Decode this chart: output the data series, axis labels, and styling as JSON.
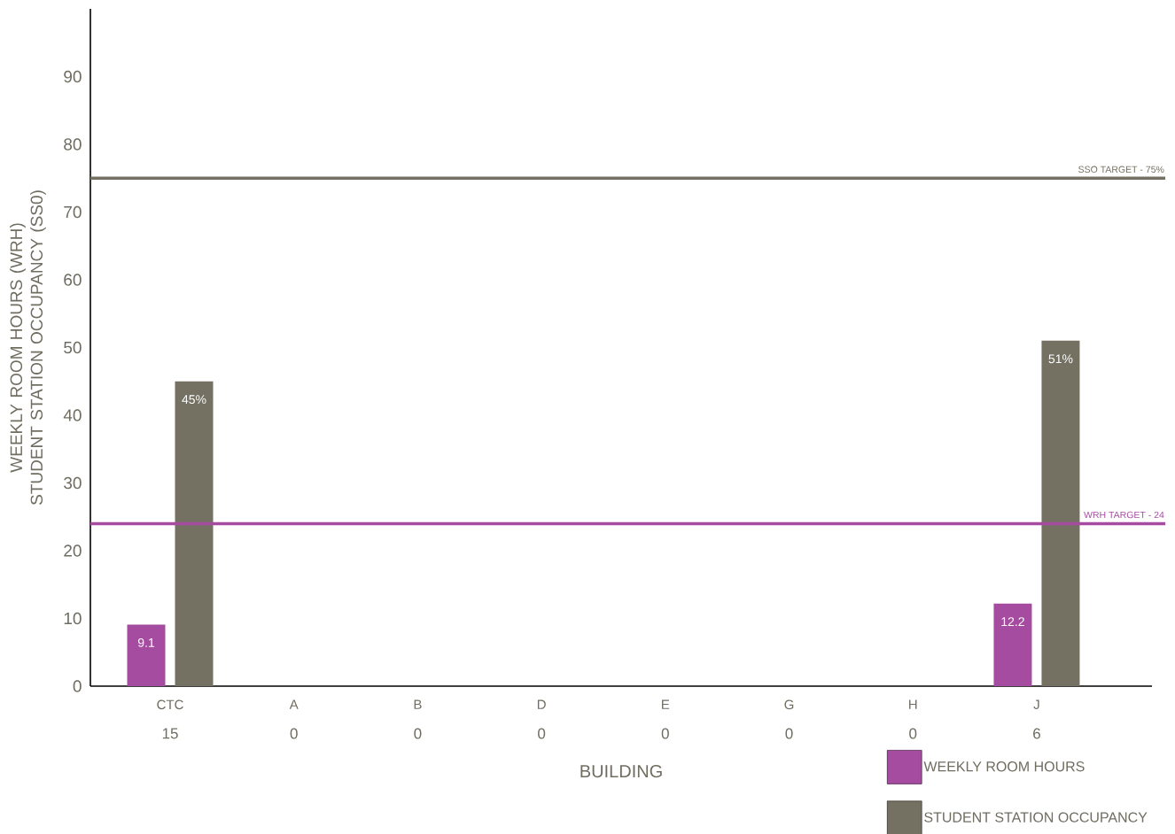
{
  "chart_data": {
    "type": "bar",
    "xlabel": "BUILDING",
    "ylabel": "WEEKLY ROOM HOURS (WRH) STUDENT STATION OCCUPANCY (SS0)",
    "categories": [
      "CTC",
      "A",
      "B",
      "D",
      "E",
      "G",
      "H",
      "J"
    ],
    "series": [
      {
        "name": "WEEKLY ROOM HOURS",
        "color": "#a64ca0",
        "values": [
          9.1,
          null,
          null,
          null,
          null,
          null,
          null,
          12.2
        ],
        "value_labels": [
          "9.1",
          null,
          null,
          null,
          null,
          null,
          null,
          "12.2"
        ]
      },
      {
        "name": "STUDENT STATION OCCUPANCY",
        "color": "#747162",
        "values": [
          45,
          null,
          null,
          null,
          null,
          null,
          null,
          51
        ],
        "value_labels": [
          "45%",
          null,
          null,
          null,
          null,
          null,
          null,
          "51%"
        ]
      }
    ],
    "ylim": [
      0,
      100
    ],
    "yticks": [
      0,
      10,
      20,
      30,
      40,
      50,
      60,
      70,
      80,
      90
    ],
    "ref_lines": [
      {
        "axis": "y",
        "value": 75,
        "label": "SSO TARGET - 75%",
        "color": "#747162"
      },
      {
        "axis": "y",
        "value": 24,
        "label": "WRH TARGET - 24",
        "color": "#a64ca0"
      }
    ],
    "annotations": [
      "15",
      "0",
      "0",
      "0",
      "0",
      "0",
      "0",
      "6"
    ],
    "grid": false,
    "legend": "bottom right"
  }
}
